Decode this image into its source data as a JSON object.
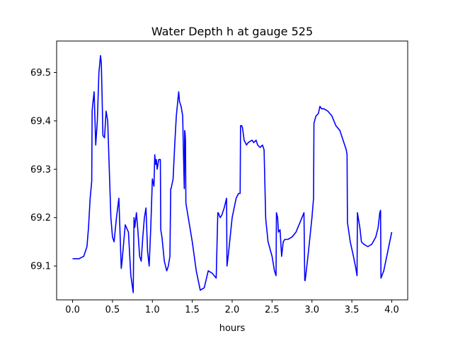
{
  "chart_data": {
    "type": "line",
    "title": "Water Depth h at gauge 525",
    "xlabel": "hours",
    "ylabel": "",
    "xlim": [
      -0.2,
      4.2
    ],
    "ylim": [
      69.03,
      69.565
    ],
    "x_ticks": [
      0.0,
      0.5,
      1.0,
      1.5,
      2.0,
      2.5,
      3.0,
      3.5,
      4.0
    ],
    "x_tick_labels": [
      "0.0",
      "0.5",
      "1.0",
      "1.5",
      "2.0",
      "2.5",
      "3.0",
      "3.5",
      "4.0"
    ],
    "y_ticks": [
      69.1,
      69.2,
      69.3,
      69.4,
      69.5
    ],
    "y_tick_labels": [
      "69.1",
      "69.2",
      "69.3",
      "69.4",
      "69.5"
    ],
    "grid": false,
    "legend": "none",
    "series": [
      {
        "color": "#0000ff",
        "x": [
          0.0,
          0.08,
          0.14,
          0.18,
          0.2,
          0.22,
          0.24,
          0.245,
          0.25,
          0.27,
          0.29,
          0.31,
          0.33,
          0.35,
          0.36,
          0.37,
          0.38,
          0.4,
          0.42,
          0.44,
          0.46,
          0.48,
          0.5,
          0.52,
          0.55,
          0.58,
          0.61,
          0.62,
          0.66,
          0.7,
          0.73,
          0.76,
          0.77,
          0.78,
          0.8,
          0.82,
          0.84,
          0.86,
          0.88,
          0.9,
          0.92,
          0.94,
          0.96,
          0.98,
          1.0,
          1.02,
          1.03,
          1.04,
          1.05,
          1.06,
          1.08,
          1.1,
          1.105,
          1.12,
          1.15,
          1.18,
          1.2,
          1.22,
          1.23,
          1.235,
          1.26,
          1.28,
          1.3,
          1.33,
          1.34,
          1.36,
          1.38,
          1.39,
          1.4,
          1.405,
          1.41,
          1.415,
          1.42,
          1.45,
          1.5,
          1.55,
          1.6,
          1.65,
          1.7,
          1.75,
          1.8,
          1.82,
          1.825,
          1.85,
          1.87,
          1.9,
          1.93,
          1.935,
          1.95,
          2.0,
          2.05,
          2.08,
          2.1,
          2.105,
          2.12,
          2.13,
          2.15,
          2.18,
          2.2,
          2.25,
          2.27,
          2.3,
          2.32,
          2.35,
          2.38,
          2.4,
          2.42,
          2.425,
          2.45,
          2.5,
          2.53,
          2.55,
          2.555,
          2.57,
          2.58,
          2.6,
          2.62,
          2.64,
          2.66,
          2.7,
          2.75,
          2.8,
          2.85,
          2.9,
          2.91,
          2.915,
          2.95,
          3.0,
          3.02,
          3.025,
          3.05,
          3.08,
          3.1,
          3.12,
          3.15,
          3.2,
          3.25,
          3.3,
          3.35,
          3.4,
          3.43,
          3.44,
          3.445,
          3.48,
          3.52,
          3.55,
          3.565,
          3.57,
          3.58,
          3.6,
          3.62,
          3.65,
          3.7,
          3.75,
          3.8,
          3.83,
          3.85,
          3.86,
          3.865,
          3.9,
          3.95,
          4.0
        ],
        "y": [
          69.115,
          69.115,
          69.12,
          69.14,
          69.18,
          69.24,
          69.275,
          69.42,
          69.43,
          69.46,
          69.35,
          69.4,
          69.5,
          69.535,
          69.52,
          69.45,
          69.37,
          69.365,
          69.42,
          69.4,
          69.3,
          69.2,
          69.16,
          69.15,
          69.2,
          69.24,
          69.095,
          69.11,
          69.185,
          69.17,
          69.08,
          69.045,
          69.2,
          69.18,
          69.21,
          69.17,
          69.12,
          69.11,
          69.16,
          69.2,
          69.22,
          69.13,
          69.1,
          69.18,
          69.28,
          69.265,
          69.33,
          69.31,
          69.32,
          69.3,
          69.32,
          69.32,
          69.175,
          69.16,
          69.11,
          69.09,
          69.1,
          69.12,
          69.26,
          69.26,
          69.28,
          69.35,
          69.41,
          69.46,
          69.44,
          69.43,
          69.41,
          69.33,
          69.26,
          69.38,
          69.375,
          69.36,
          69.23,
          69.2,
          69.15,
          69.09,
          69.05,
          69.055,
          69.09,
          69.085,
          69.075,
          69.21,
          69.21,
          69.2,
          69.205,
          69.22,
          69.24,
          69.1,
          69.12,
          69.2,
          69.24,
          69.25,
          69.25,
          69.39,
          69.39,
          69.385,
          69.36,
          69.35,
          69.355,
          69.36,
          69.355,
          69.36,
          69.35,
          69.345,
          69.35,
          69.34,
          69.2,
          69.19,
          69.15,
          69.12,
          69.09,
          69.08,
          69.21,
          69.2,
          69.17,
          69.175,
          69.12,
          69.15,
          69.155,
          69.155,
          69.16,
          69.17,
          69.19,
          69.21,
          69.07,
          69.07,
          69.12,
          69.2,
          69.24,
          69.395,
          69.41,
          69.415,
          69.43,
          69.425,
          69.425,
          69.42,
          69.41,
          69.39,
          69.38,
          69.355,
          69.34,
          69.33,
          69.19,
          69.15,
          69.12,
          69.095,
          69.08,
          69.21,
          69.2,
          69.18,
          69.15,
          69.145,
          69.14,
          69.145,
          69.16,
          69.18,
          69.21,
          69.215,
          69.075,
          69.09,
          69.13,
          69.17
        ]
      }
    ]
  }
}
